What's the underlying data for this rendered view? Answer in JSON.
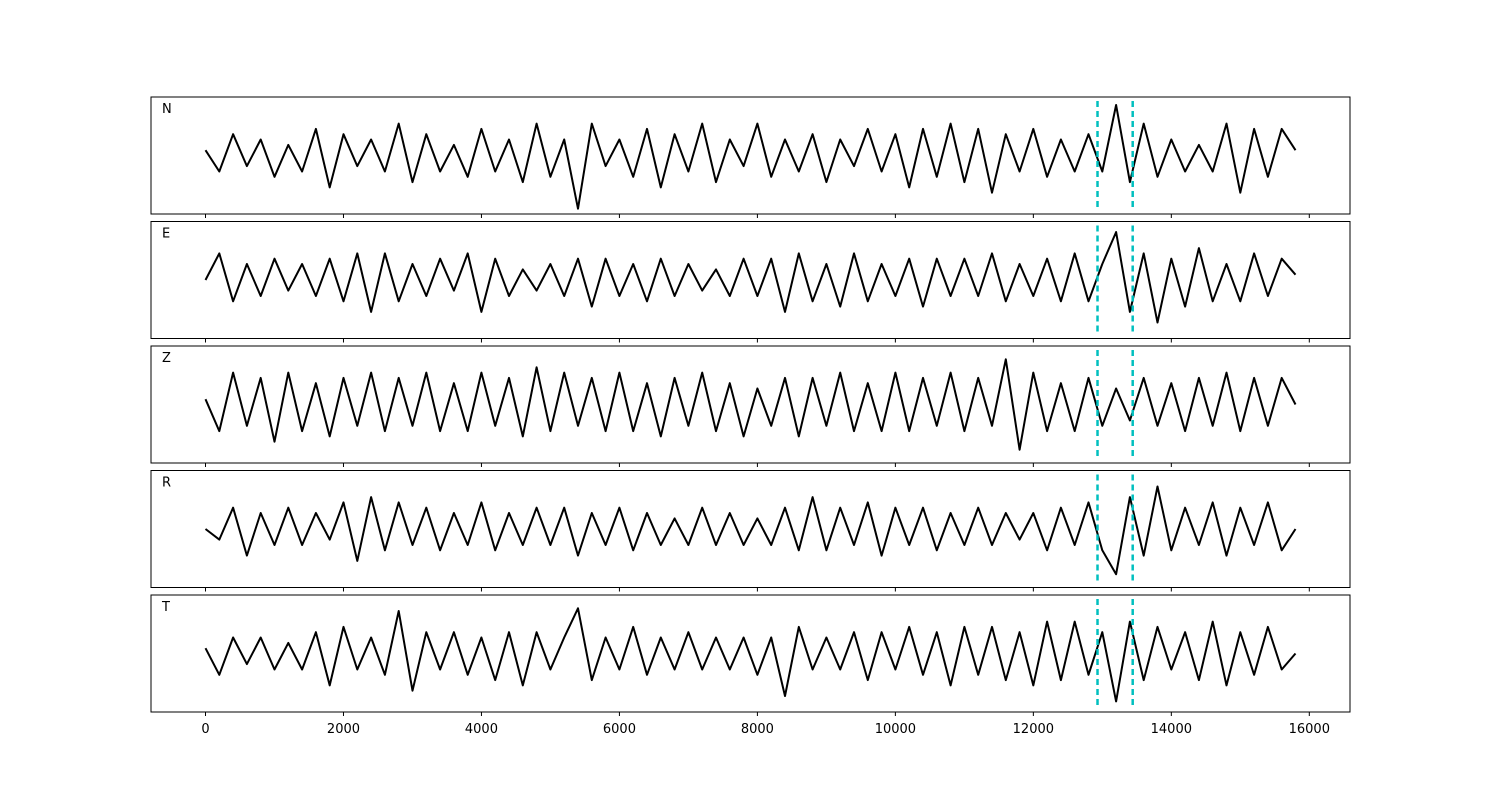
{
  "chart_data": {
    "type": "line",
    "subplots": true,
    "x": [
      0,
      200,
      400,
      600,
      800,
      1000,
      1200,
      1400,
      1600,
      1800,
      2000,
      2200,
      2400,
      2600,
      2800,
      3000,
      3200,
      3400,
      3600,
      3800,
      4000,
      4200,
      4400,
      4600,
      4800,
      5000,
      5200,
      5400,
      5600,
      5800,
      6000,
      6200,
      6400,
      6600,
      6800,
      7000,
      7200,
      7400,
      7600,
      7800,
      8000,
      8200,
      8400,
      8600,
      8800,
      9000,
      9200,
      9400,
      9600,
      9800,
      10000,
      10200,
      10400,
      10600,
      10800,
      11000,
      11200,
      11400,
      11600,
      11800,
      12000,
      12200,
      12400,
      12600,
      12800,
      13000,
      13200,
      13400,
      13600,
      13800,
      14000,
      14200,
      14400,
      14600,
      14800,
      15000,
      15200,
      15400,
      15600,
      15800
    ],
    "series": [
      {
        "name": "N",
        "color": "#000000",
        "values": [
          0.1,
          -0.3,
          0.4,
          -0.2,
          0.3,
          -0.4,
          0.2,
          -0.3,
          0.5,
          -0.6,
          0.4,
          -0.2,
          0.3,
          -0.3,
          0.6,
          -0.5,
          0.4,
          -0.3,
          0.2,
          -0.4,
          0.5,
          -0.3,
          0.3,
          -0.5,
          0.6,
          -0.4,
          0.3,
          -1.0,
          0.6,
          -0.2,
          0.3,
          -0.4,
          0.5,
          -0.6,
          0.4,
          -0.3,
          0.6,
          -0.5,
          0.3,
          -0.2,
          0.6,
          -0.4,
          0.3,
          -0.3,
          0.4,
          -0.5,
          0.3,
          -0.2,
          0.5,
          -0.3,
          0.4,
          -0.6,
          0.5,
          -0.4,
          0.6,
          -0.5,
          0.5,
          -0.7,
          0.4,
          -0.3,
          0.5,
          -0.4,
          0.3,
          -0.3,
          0.4,
          -0.3,
          0.95,
          -0.5,
          0.6,
          -0.4,
          0.3,
          -0.3,
          0.2,
          -0.3,
          0.6,
          -0.7,
          0.5,
          -0.4,
          0.5,
          0.1
        ]
      },
      {
        "name": "E",
        "color": "#000000",
        "values": [
          0.0,
          0.5,
          -0.4,
          0.3,
          -0.3,
          0.4,
          -0.2,
          0.3,
          -0.3,
          0.4,
          -0.4,
          0.5,
          -0.6,
          0.5,
          -0.4,
          0.3,
          -0.3,
          0.4,
          -0.2,
          0.5,
          -0.6,
          0.4,
          -0.3,
          0.2,
          -0.2,
          0.3,
          -0.3,
          0.4,
          -0.5,
          0.4,
          -0.3,
          0.3,
          -0.4,
          0.4,
          -0.3,
          0.3,
          -0.2,
          0.2,
          -0.3,
          0.4,
          -0.3,
          0.4,
          -0.6,
          0.5,
          -0.4,
          0.3,
          -0.5,
          0.5,
          -0.4,
          0.3,
          -0.3,
          0.4,
          -0.5,
          0.4,
          -0.3,
          0.4,
          -0.3,
          0.5,
          -0.4,
          0.3,
          -0.3,
          0.4,
          -0.4,
          0.5,
          -0.4,
          0.3,
          0.9,
          -0.6,
          0.5,
          -0.8,
          0.4,
          -0.5,
          0.6,
          -0.4,
          0.3,
          -0.4,
          0.5,
          -0.3,
          0.4,
          0.1
        ]
      },
      {
        "name": "Z",
        "color": "#000000",
        "values": [
          0.1,
          -0.5,
          0.6,
          -0.4,
          0.5,
          -0.7,
          0.6,
          -0.5,
          0.4,
          -0.6,
          0.5,
          -0.4,
          0.6,
          -0.5,
          0.5,
          -0.4,
          0.6,
          -0.5,
          0.4,
          -0.5,
          0.6,
          -0.4,
          0.5,
          -0.6,
          0.7,
          -0.5,
          0.6,
          -0.4,
          0.5,
          -0.5,
          0.6,
          -0.5,
          0.4,
          -0.6,
          0.5,
          -0.4,
          0.6,
          -0.5,
          0.4,
          -0.6,
          0.3,
          -0.4,
          0.5,
          -0.6,
          0.5,
          -0.4,
          0.6,
          -0.5,
          0.4,
          -0.5,
          0.6,
          -0.5,
          0.5,
          -0.4,
          0.6,
          -0.5,
          0.5,
          -0.4,
          0.85,
          -0.85,
          0.6,
          -0.5,
          0.4,
          -0.5,
          0.5,
          -0.4,
          0.3,
          -0.3,
          0.5,
          -0.4,
          0.4,
          -0.5,
          0.5,
          -0.4,
          0.6,
          -0.5,
          0.5,
          -0.4,
          0.5,
          0.0
        ]
      },
      {
        "name": "R",
        "color": "#000000",
        "values": [
          0.0,
          -0.2,
          0.4,
          -0.5,
          0.3,
          -0.3,
          0.4,
          -0.3,
          0.3,
          -0.2,
          0.5,
          -0.6,
          0.6,
          -0.4,
          0.5,
          -0.3,
          0.4,
          -0.4,
          0.3,
          -0.3,
          0.5,
          -0.4,
          0.3,
          -0.3,
          0.4,
          -0.3,
          0.4,
          -0.5,
          0.3,
          -0.3,
          0.4,
          -0.4,
          0.3,
          -0.3,
          0.2,
          -0.3,
          0.4,
          -0.3,
          0.3,
          -0.3,
          0.2,
          -0.3,
          0.4,
          -0.4,
          0.6,
          -0.4,
          0.4,
          -0.3,
          0.5,
          -0.5,
          0.4,
          -0.3,
          0.4,
          -0.4,
          0.3,
          -0.3,
          0.4,
          -0.3,
          0.3,
          -0.2,
          0.3,
          -0.4,
          0.4,
          -0.3,
          0.5,
          -0.4,
          -0.85,
          0.6,
          -0.5,
          0.8,
          -0.4,
          0.4,
          -0.3,
          0.5,
          -0.5,
          0.4,
          -0.3,
          0.5,
          -0.4,
          0.0
        ]
      },
      {
        "name": "T",
        "color": "#000000",
        "values": [
          0.1,
          -0.4,
          0.3,
          -0.2,
          0.3,
          -0.3,
          0.2,
          -0.3,
          0.4,
          -0.6,
          0.5,
          -0.3,
          0.3,
          -0.4,
          0.8,
          -0.7,
          0.4,
          -0.3,
          0.4,
          -0.4,
          0.3,
          -0.5,
          0.4,
          -0.6,
          0.4,
          -0.3,
          0.3,
          0.85,
          -0.5,
          0.3,
          -0.3,
          0.5,
          -0.4,
          0.3,
          -0.3,
          0.4,
          -0.3,
          0.3,
          -0.3,
          0.3,
          -0.4,
          0.3,
          -0.8,
          0.5,
          -0.3,
          0.3,
          -0.3,
          0.4,
          -0.5,
          0.4,
          -0.3,
          0.5,
          -0.4,
          0.4,
          -0.6,
          0.5,
          -0.4,
          0.5,
          -0.5,
          0.4,
          -0.6,
          0.6,
          -0.5,
          0.6,
          -0.4,
          0.4,
          -0.9,
          0.6,
          -0.5,
          0.5,
          -0.3,
          0.4,
          -0.5,
          0.6,
          -0.6,
          0.4,
          -0.4,
          0.5,
          -0.3,
          0.0
        ]
      }
    ],
    "xlim": [
      -790,
      16590
    ],
    "ylim": [
      -1.1,
      1.1
    ],
    "xticks": [
      0,
      2000,
      4000,
      6000,
      8000,
      10000,
      12000,
      14000,
      16000
    ],
    "vlines": [
      12930,
      13440
    ],
    "vline_color": "#00bfbf"
  }
}
